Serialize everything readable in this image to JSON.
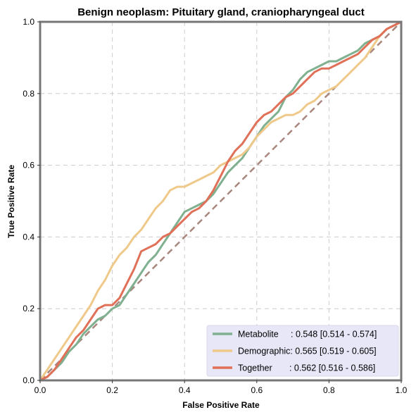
{
  "chart_data": {
    "type": "line",
    "title": "Benign neoplasm: Pituitary gland, craniopharyngeal duct",
    "xlabel": "False Positive Rate",
    "ylabel": "True Positive Rate",
    "xlim": [
      0,
      1
    ],
    "ylim": [
      0,
      1
    ],
    "xticks": [
      0,
      0.2,
      0.4,
      0.6,
      0.8,
      1
    ],
    "yticks": [
      0,
      0.2,
      0.4,
      0.6,
      0.8,
      1
    ],
    "xtick_labels": [
      "0.0",
      "0.2",
      "0.4",
      "0.6",
      "0.8",
      "1.0"
    ],
    "ytick_labels": [
      "0.0",
      "0.2",
      "0.4",
      "0.6",
      "0.8",
      "1.0"
    ],
    "grid": true,
    "legend_position": "bottom-right",
    "diagonal": {
      "color": "#a9877e"
    },
    "series": [
      {
        "name": "Metabolite",
        "label": "Metabolite     : 0.548 [0.514 - 0.574]",
        "color": "#7fb08f",
        "x": [
          0,
          0.02,
          0.04,
          0.06,
          0.08,
          0.1,
          0.12,
          0.14,
          0.16,
          0.18,
          0.2,
          0.22,
          0.24,
          0.26,
          0.28,
          0.3,
          0.32,
          0.34,
          0.36,
          0.38,
          0.4,
          0.42,
          0.44,
          0.46,
          0.48,
          0.5,
          0.52,
          0.54,
          0.56,
          0.58,
          0.6,
          0.62,
          0.64,
          0.66,
          0.68,
          0.7,
          0.72,
          0.74,
          0.76,
          0.78,
          0.8,
          0.82,
          0.84,
          0.86,
          0.88,
          0.9,
          0.92,
          0.94,
          0.96,
          0.98,
          1
        ],
        "y": [
          0,
          0.01,
          0.03,
          0.05,
          0.08,
          0.1,
          0.13,
          0.15,
          0.17,
          0.18,
          0.2,
          0.21,
          0.24,
          0.27,
          0.3,
          0.33,
          0.35,
          0.38,
          0.41,
          0.44,
          0.47,
          0.48,
          0.49,
          0.5,
          0.52,
          0.55,
          0.58,
          0.6,
          0.62,
          0.65,
          0.68,
          0.71,
          0.73,
          0.75,
          0.79,
          0.81,
          0.84,
          0.86,
          0.87,
          0.88,
          0.89,
          0.89,
          0.9,
          0.91,
          0.92,
          0.94,
          0.95,
          0.96,
          0.98,
          0.99,
          1
        ]
      },
      {
        "name": "Demographic",
        "label": "Demographic: 0.565 [0.519 - 0.605]",
        "color": "#efc98a",
        "x": [
          0,
          0.02,
          0.04,
          0.06,
          0.08,
          0.1,
          0.12,
          0.14,
          0.16,
          0.18,
          0.2,
          0.22,
          0.24,
          0.26,
          0.28,
          0.3,
          0.32,
          0.34,
          0.36,
          0.38,
          0.4,
          0.42,
          0.44,
          0.46,
          0.48,
          0.5,
          0.52,
          0.54,
          0.56,
          0.58,
          0.6,
          0.62,
          0.64,
          0.66,
          0.68,
          0.7,
          0.72,
          0.74,
          0.76,
          0.78,
          0.8,
          0.82,
          0.84,
          0.86,
          0.88,
          0.9,
          0.92,
          0.94,
          0.96,
          0.98,
          1
        ],
        "y": [
          0,
          0.03,
          0.06,
          0.09,
          0.12,
          0.15,
          0.18,
          0.21,
          0.25,
          0.28,
          0.32,
          0.35,
          0.37,
          0.4,
          0.42,
          0.45,
          0.48,
          0.5,
          0.53,
          0.54,
          0.54,
          0.55,
          0.56,
          0.57,
          0.58,
          0.6,
          0.61,
          0.62,
          0.63,
          0.65,
          0.68,
          0.7,
          0.72,
          0.73,
          0.74,
          0.74,
          0.75,
          0.77,
          0.78,
          0.8,
          0.81,
          0.82,
          0.84,
          0.86,
          0.88,
          0.9,
          0.93,
          0.96,
          0.98,
          0.99,
          1
        ]
      },
      {
        "name": "Together",
        "label": "Together       : 0.562 [0.516 - 0.586]",
        "color": "#e07058",
        "x": [
          0,
          0.02,
          0.04,
          0.06,
          0.08,
          0.1,
          0.12,
          0.14,
          0.16,
          0.18,
          0.2,
          0.22,
          0.24,
          0.26,
          0.28,
          0.3,
          0.32,
          0.34,
          0.36,
          0.38,
          0.4,
          0.42,
          0.44,
          0.46,
          0.48,
          0.5,
          0.52,
          0.54,
          0.56,
          0.58,
          0.6,
          0.62,
          0.64,
          0.66,
          0.68,
          0.7,
          0.72,
          0.74,
          0.76,
          0.78,
          0.8,
          0.82,
          0.84,
          0.86,
          0.88,
          0.9,
          0.92,
          0.94,
          0.96,
          0.98,
          1
        ],
        "y": [
          0,
          0.01,
          0.03,
          0.06,
          0.09,
          0.12,
          0.14,
          0.17,
          0.2,
          0.21,
          0.21,
          0.23,
          0.27,
          0.31,
          0.36,
          0.37,
          0.38,
          0.4,
          0.41,
          0.43,
          0.45,
          0.47,
          0.48,
          0.5,
          0.53,
          0.57,
          0.61,
          0.64,
          0.66,
          0.69,
          0.72,
          0.74,
          0.75,
          0.77,
          0.79,
          0.8,
          0.82,
          0.84,
          0.86,
          0.87,
          0.87,
          0.88,
          0.89,
          0.9,
          0.91,
          0.93,
          0.95,
          0.96,
          0.98,
          0.99,
          1
        ]
      }
    ]
  }
}
